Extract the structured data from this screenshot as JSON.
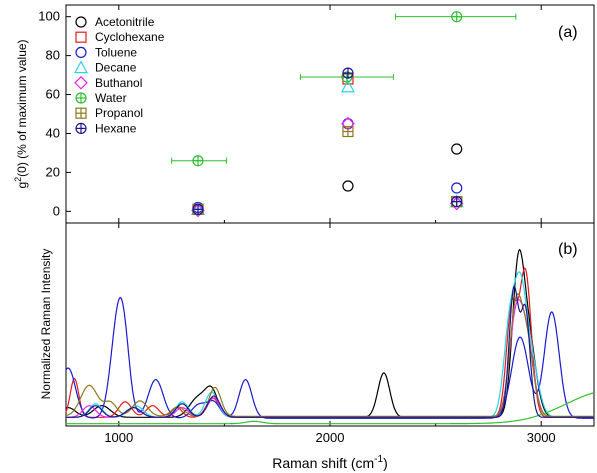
{
  "chart_data": [
    {
      "panel": "(a)",
      "type": "scatter",
      "ylabel_main": "g",
      "ylabel_sup": "2",
      "ylabel_rest": "(0) (% of maximum value)",
      "xlim": [
        750,
        3250
      ],
      "ylim": [
        -6,
        106
      ],
      "yticks": [
        0,
        20,
        40,
        60,
        80,
        100
      ],
      "legend_position": "top-left",
      "series": [
        {
          "name": "Acetonitrile",
          "marker": "circle",
          "color": "#000000",
          "x": [
            1375,
            2085,
            2600
          ],
          "y": [
            1,
            13,
            32
          ]
        },
        {
          "name": "Cyclohexane",
          "marker": "square",
          "color": "#e41a1c",
          "x": [
            1375,
            2085,
            2600
          ],
          "y": [
            1,
            68,
            5
          ]
        },
        {
          "name": "Toluene",
          "marker": "circle",
          "color": "#1a1ad0",
          "x": [
            1375,
            2085,
            2600
          ],
          "y": [
            2,
            45,
            12
          ]
        },
        {
          "name": "Decane",
          "marker": "triangle",
          "color": "#27d6e8",
          "x": [
            1375,
            2085,
            2600
          ],
          "y": [
            1,
            64,
            5
          ]
        },
        {
          "name": "Buthanol",
          "marker": "diamond",
          "color": "#ee22ee",
          "x": [
            1375,
            2085,
            2600
          ],
          "y": [
            0.5,
            45,
            4
          ]
        },
        {
          "name": "Water",
          "marker": "crosscircle",
          "color": "#30c030",
          "x": [
            1375,
            2080,
            2600
          ],
          "y": [
            26,
            69,
            100
          ],
          "xerr": [
            [
              1250,
              1510
            ],
            [
              1860,
              2300
            ],
            [
              2310,
              2880
            ]
          ]
        },
        {
          "name": "Propanol",
          "marker": "crosssquare",
          "color": "#8a7a1e",
          "x": [
            1375,
            2085,
            2600
          ],
          "y": [
            1,
            41,
            5
          ]
        },
        {
          "name": "Hexane",
          "marker": "crosscircle",
          "color": "#1a1a8a",
          "x": [
            1375,
            2085,
            2600
          ],
          "y": [
            1,
            71,
            5
          ]
        }
      ]
    },
    {
      "panel": "(b)",
      "type": "line",
      "xlabel_main": "Raman shift (cm",
      "xlabel_sup": "-1",
      "xlabel_end": ")",
      "ylabel": "Normalized Raman Intensity",
      "xlim": [
        750,
        3250
      ],
      "ylim": [
        0,
        1.05
      ],
      "xticks": [
        1000,
        2000,
        3000
      ],
      "series": [
        {
          "name": "Acetonitrile",
          "color": "#000000",
          "baseline": 0.045,
          "peaks": [
            [
              760,
              0.05,
              35
            ],
            [
              920,
              0.06,
              40
            ],
            [
              1375,
              0.1,
              40
            ],
            [
              1440,
              0.13,
              30
            ],
            [
              2255,
              0.23,
              28
            ],
            [
              2890,
              0.7,
              28
            ],
            [
              2940,
              0.4,
              35
            ]
          ]
        },
        {
          "name": "Cyclohexane",
          "color": "#e41a1c",
          "baseline": 0.045,
          "peaks": [
            [
              790,
              0.2,
              20
            ],
            [
              1030,
              0.08,
              30
            ],
            [
              1160,
              0.06,
              30
            ],
            [
              1275,
              0.05,
              25
            ],
            [
              1445,
              0.1,
              30
            ],
            [
              2860,
              0.55,
              25
            ],
            [
              2925,
              0.75,
              28
            ]
          ]
        },
        {
          "name": "Toluene",
          "color": "#1a1ad0",
          "baseline": 0.04,
          "peaks": [
            [
              760,
              0.26,
              35
            ],
            [
              1000,
              0.55,
              35
            ],
            [
              1030,
              0.13,
              25
            ],
            [
              1175,
              0.2,
              35
            ],
            [
              1380,
              0.07,
              35
            ],
            [
              1450,
              0.08,
              30
            ],
            [
              1600,
              0.2,
              30
            ],
            [
              2900,
              0.42,
              40
            ],
            [
              3050,
              0.55,
              35
            ]
          ]
        },
        {
          "name": "Decane",
          "color": "#27d6e8",
          "baseline": 0.045,
          "peaks": [
            [
              890,
              0.07,
              30
            ],
            [
              1080,
              0.06,
              35
            ],
            [
              1300,
              0.08,
              30
            ],
            [
              1440,
              0.13,
              30
            ],
            [
              2850,
              0.45,
              28
            ],
            [
              2900,
              0.55,
              28
            ],
            [
              2950,
              0.3,
              35
            ]
          ]
        },
        {
          "name": "Buthanol",
          "color": "#ee22ee",
          "baseline": 0.045,
          "peaks": [
            [
              860,
              0.06,
              30
            ],
            [
              1070,
              0.05,
              35
            ],
            [
              1300,
              0.05,
              30
            ],
            [
              1450,
              0.1,
              30
            ],
            [
              2880,
              0.5,
              32
            ],
            [
              2935,
              0.35,
              32
            ]
          ]
        },
        {
          "name": "Water",
          "color": "#30c030",
          "baseline": 0.012,
          "peaks": [
            [
              1640,
              0.012,
              40
            ],
            [
              3320,
              0.17,
              200
            ]
          ]
        },
        {
          "name": "Propanol",
          "color": "#8a7a1e",
          "baseline": 0.05,
          "peaks": [
            [
              860,
              0.16,
              40
            ],
            [
              960,
              0.07,
              30
            ],
            [
              1100,
              0.08,
              35
            ],
            [
              1280,
              0.05,
              30
            ],
            [
              1455,
              0.15,
              28
            ],
            [
              2880,
              0.55,
              30
            ],
            [
              2935,
              0.35,
              30
            ]
          ]
        },
        {
          "name": "Hexane",
          "color": "#1a1a8a",
          "baseline": 0.045,
          "peaks": [
            [
              890,
              0.06,
              30
            ],
            [
              1070,
              0.05,
              35
            ],
            [
              1300,
              0.07,
              30
            ],
            [
              1450,
              0.11,
              30
            ],
            [
              2870,
              0.65,
              22
            ],
            [
              2925,
              0.55,
              22
            ]
          ]
        }
      ]
    }
  ]
}
